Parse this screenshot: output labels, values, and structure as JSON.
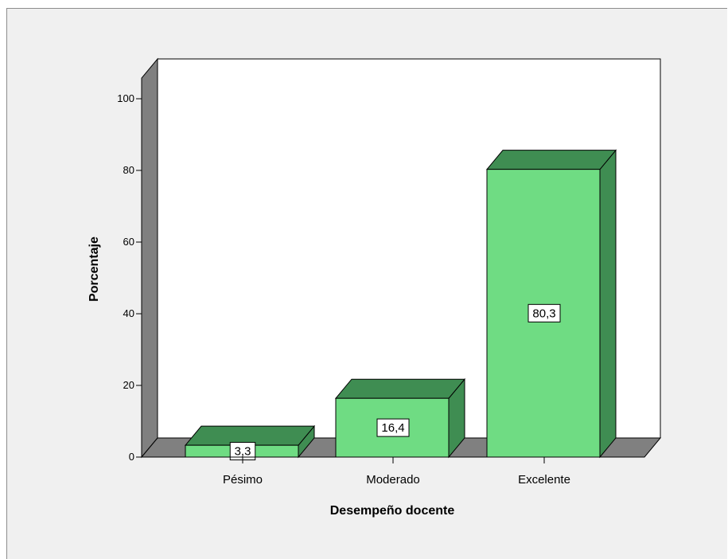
{
  "chart_data": {
    "type": "bar",
    "title": "",
    "xlabel": "Desempeño docente",
    "ylabel": "Porcentaje",
    "categories": [
      "Pésimo",
      "Moderado",
      "Excelente"
    ],
    "values": [
      3.3,
      16.4,
      80.3
    ],
    "data_labels": [
      "3,3",
      "16,4",
      "80,3"
    ],
    "yticks": [
      "0",
      "20",
      "40",
      "60",
      "80",
      "100"
    ],
    "ylim": [
      0,
      110
    ],
    "grid": false,
    "legend": "none",
    "colors": {
      "bar_front": "#6fdc83",
      "bar_top": "#3f8d52",
      "bar_side": "#3f8d52",
      "floor": "#808080",
      "wall": "#ffffff",
      "left_wall": "#808080",
      "background": "#f0f0f0"
    }
  }
}
